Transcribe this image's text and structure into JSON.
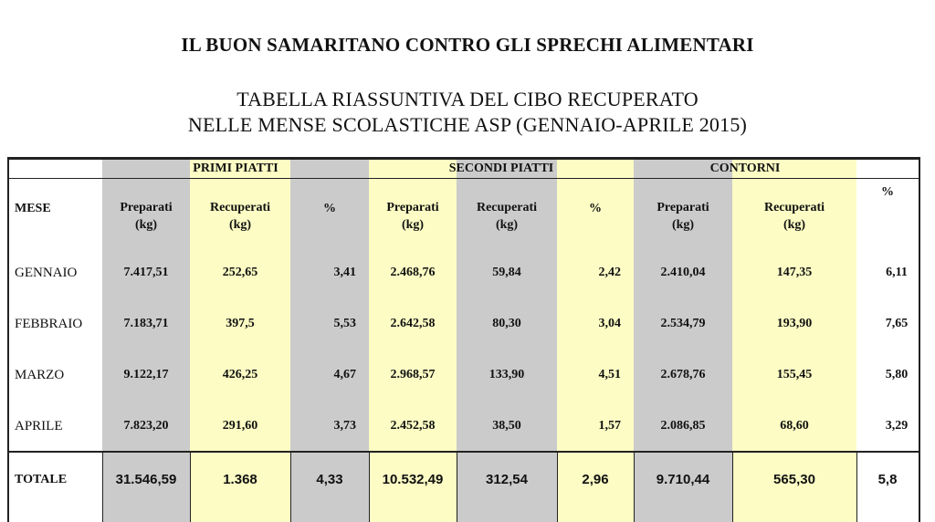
{
  "title": "IL BUON SAMARITANO CONTRO GLI SPRECHI ALIMENTARI",
  "subtitle_line1": "TABELLA RIASSUNTIVA DEL CIBO RECUPERATO",
  "subtitle_line2": "NELLE MENSE SCOLASTICHE ASP (GENNAIO-APRILE 2015)",
  "groups": {
    "primi": "PRIMI PIATTI",
    "secondi": "SECONDI PIATTI",
    "contorni": "CONTORNI"
  },
  "headers": {
    "mese": "MESE",
    "preparati_1": "Preparati",
    "preparati_2": "(kg)",
    "recuperati_1": "Recuperati",
    "recuperati_2": "(kg)",
    "percent": "%"
  },
  "rows": [
    {
      "mese": "GENNAIO",
      "values": [
        "7.417,51",
        "252,65",
        "3,41",
        "2.468,76",
        "59,84",
        "2,42",
        "2.410,04",
        "147,35",
        "6,11"
      ]
    },
    {
      "mese": "FEBBRAIO",
      "values": [
        "7.183,71",
        "397,5",
        "5,53",
        "2.642,58",
        "80,30",
        "3,04",
        "2.534,79",
        "193,90",
        "7,65"
      ]
    },
    {
      "mese": "MARZO",
      "values": [
        "9.122,17",
        "426,25",
        "4,67",
        "2.968,57",
        "133,90",
        "4,51",
        "2.678,76",
        "155,45",
        "5,80"
      ]
    },
    {
      "mese": "APRILE",
      "values": [
        "7.823,20",
        "291,60",
        "3,73",
        "2.452,58",
        "38,50",
        "1,57",
        "2.086,85",
        "68,60",
        "3,29"
      ]
    }
  ],
  "totale": {
    "mese": "TOTALE",
    "values": [
      "31.546,59",
      "1.368",
      "4,33",
      "10.532,49",
      "312,54",
      "2,96",
      "9.710,44",
      "565,30",
      "5,8"
    ]
  },
  "colors": {
    "gray": "#cbcbcb",
    "yellow": "#fcfcc4",
    "border": "#222222"
  }
}
